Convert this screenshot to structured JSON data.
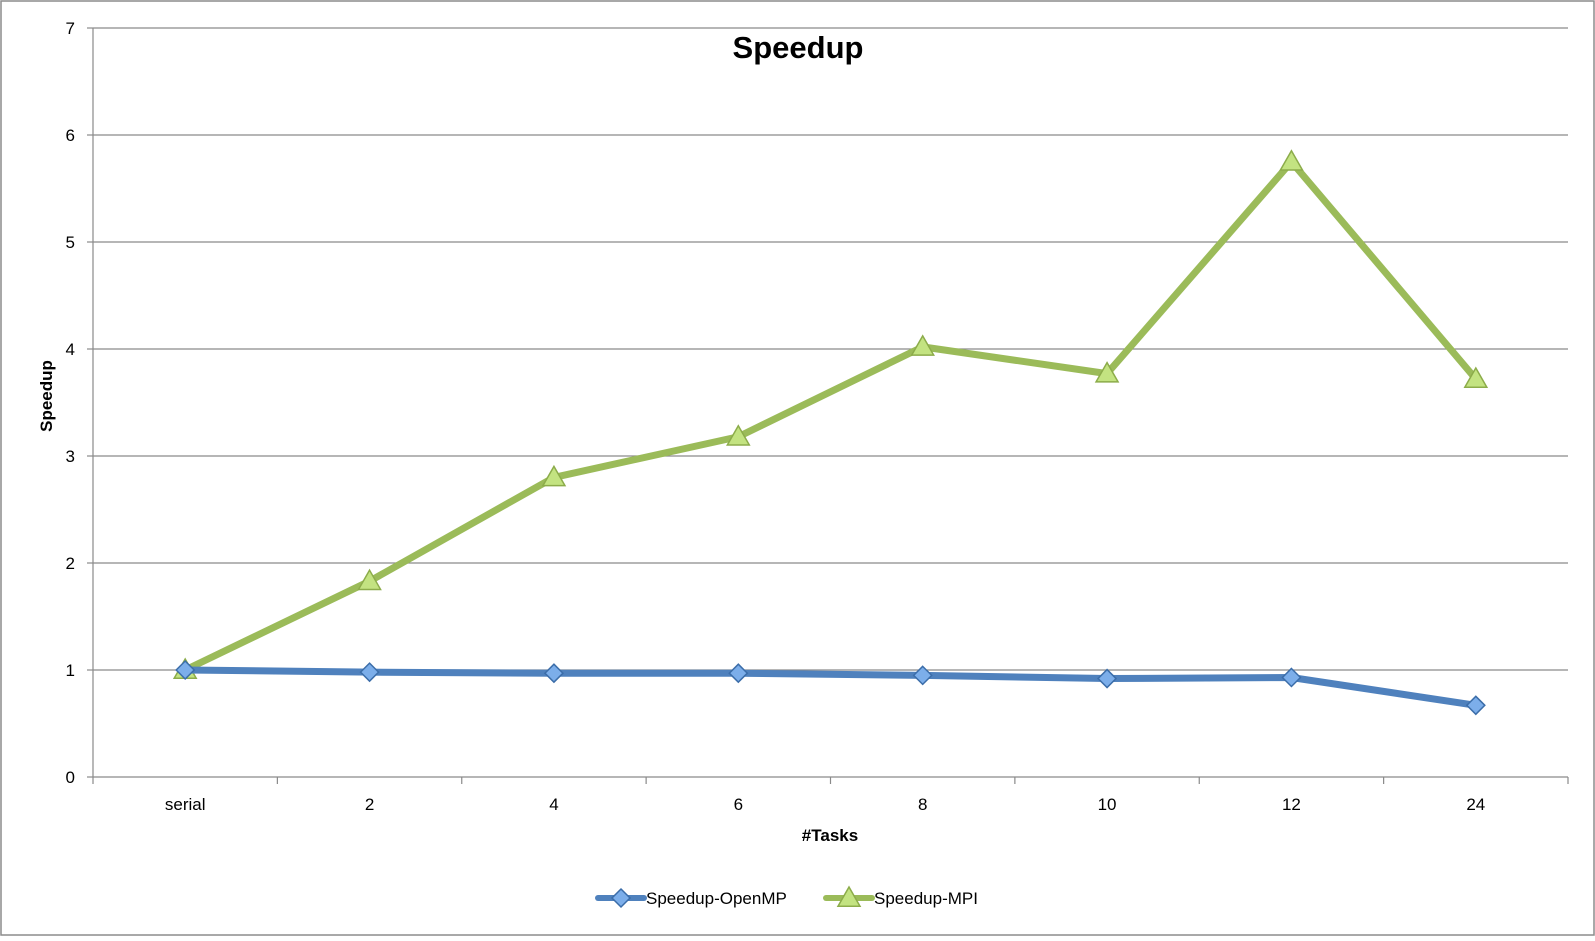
{
  "chart_data": {
    "type": "line",
    "title": "Speedup",
    "xlabel": "#Tasks",
    "ylabel": "Speedup",
    "categories": [
      "serial",
      "2",
      "4",
      "6",
      "8",
      "10",
      "12",
      "24"
    ],
    "ylim": [
      0,
      7
    ],
    "yticks": [
      "0",
      "1",
      "2",
      "3",
      "4",
      "5",
      "6",
      "7"
    ],
    "grid": true,
    "legend_position": "bottom",
    "series": [
      {
        "name": "Speedup-OpenMP",
        "color": "#4f81bd",
        "marker": "diamond",
        "values": [
          1.0,
          0.98,
          0.97,
          0.97,
          0.95,
          0.92,
          0.93,
          0.67
        ]
      },
      {
        "name": "Speedup-MPI",
        "color": "#9bbb59",
        "marker": "triangle",
        "values": [
          1.0,
          1.83,
          2.8,
          3.18,
          4.02,
          3.77,
          5.75,
          3.72
        ]
      }
    ]
  }
}
